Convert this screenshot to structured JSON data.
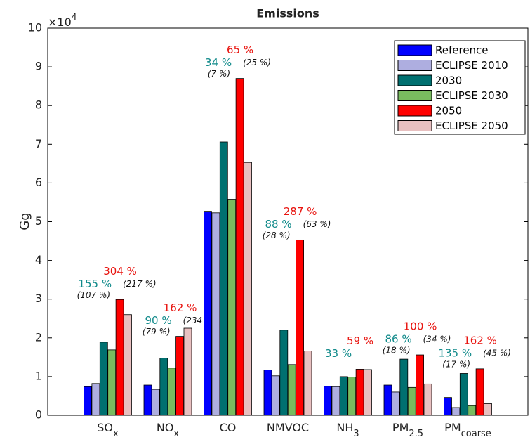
{
  "chart_data": {
    "type": "bar",
    "title": "Emissions",
    "y_label": "Gg",
    "y_multiplier": {
      "base": "×10",
      "exp": "4"
    },
    "categories": [
      {
        "text": "SO",
        "sub": "x"
      },
      {
        "text": "NO",
        "sub": "x"
      },
      {
        "text": "CO"
      },
      {
        "text": "NMVOC"
      },
      {
        "text": "NH",
        "sub": "3"
      },
      {
        "text": "PM",
        "sub": "2.5"
      },
      {
        "text": "PM",
        "sub": "coarse"
      }
    ],
    "series": [
      {
        "name": "Reference",
        "color": "#0000ff",
        "values": [
          0.74,
          0.78,
          5.27,
          1.17,
          0.75,
          0.78,
          0.46
        ]
      },
      {
        "name": "ECLIPSE 2010",
        "color": "#aeaee0",
        "values": [
          0.82,
          0.67,
          5.23,
          1.02,
          0.74,
          0.6,
          0.2
        ]
      },
      {
        "name": "2030",
        "color": "#007070",
        "values": [
          1.89,
          1.48,
          7.06,
          2.2,
          1.0,
          1.45,
          1.08
        ]
      },
      {
        "name": "ECLIPSE 2030",
        "color": "#79bb5f",
        "values": [
          1.69,
          1.22,
          5.58,
          1.31,
          0.99,
          0.72,
          0.25
        ]
      },
      {
        "name": "2050",
        "color": "#ff0000",
        "values": [
          2.99,
          2.04,
          8.7,
          4.53,
          1.19,
          1.56,
          1.2
        ]
      },
      {
        "name": "ECLIPSE 2050",
        "color": "#e8c0c0",
        "values": [
          2.6,
          2.25,
          6.53,
          1.66,
          1.18,
          0.81,
          0.3
        ]
      }
    ],
    "annotations": [
      [
        "155 %",
        "304 %",
        "(107 %)",
        "(217 %)"
      ],
      [
        "90 %",
        "162 %",
        "(79 %)",
        "(234 %)"
      ],
      [
        "34 %",
        "65 %",
        "(7 %)",
        "(25 %)"
      ],
      [
        "88 %",
        "287 %",
        "(28 %)",
        "(63 %)"
      ],
      [
        "33 %",
        "59 %"
      ],
      [
        "86 %",
        "100 %",
        "(18 %)",
        "(34 %)"
      ],
      [
        "135 %",
        "162 %",
        "(17 %)",
        "(45 %)"
      ]
    ],
    "ylim": [
      0,
      10
    ],
    "yticks": [
      0,
      1,
      2,
      3,
      4,
      5,
      6,
      7,
      8,
      9,
      10
    ],
    "legend": "upper right"
  }
}
